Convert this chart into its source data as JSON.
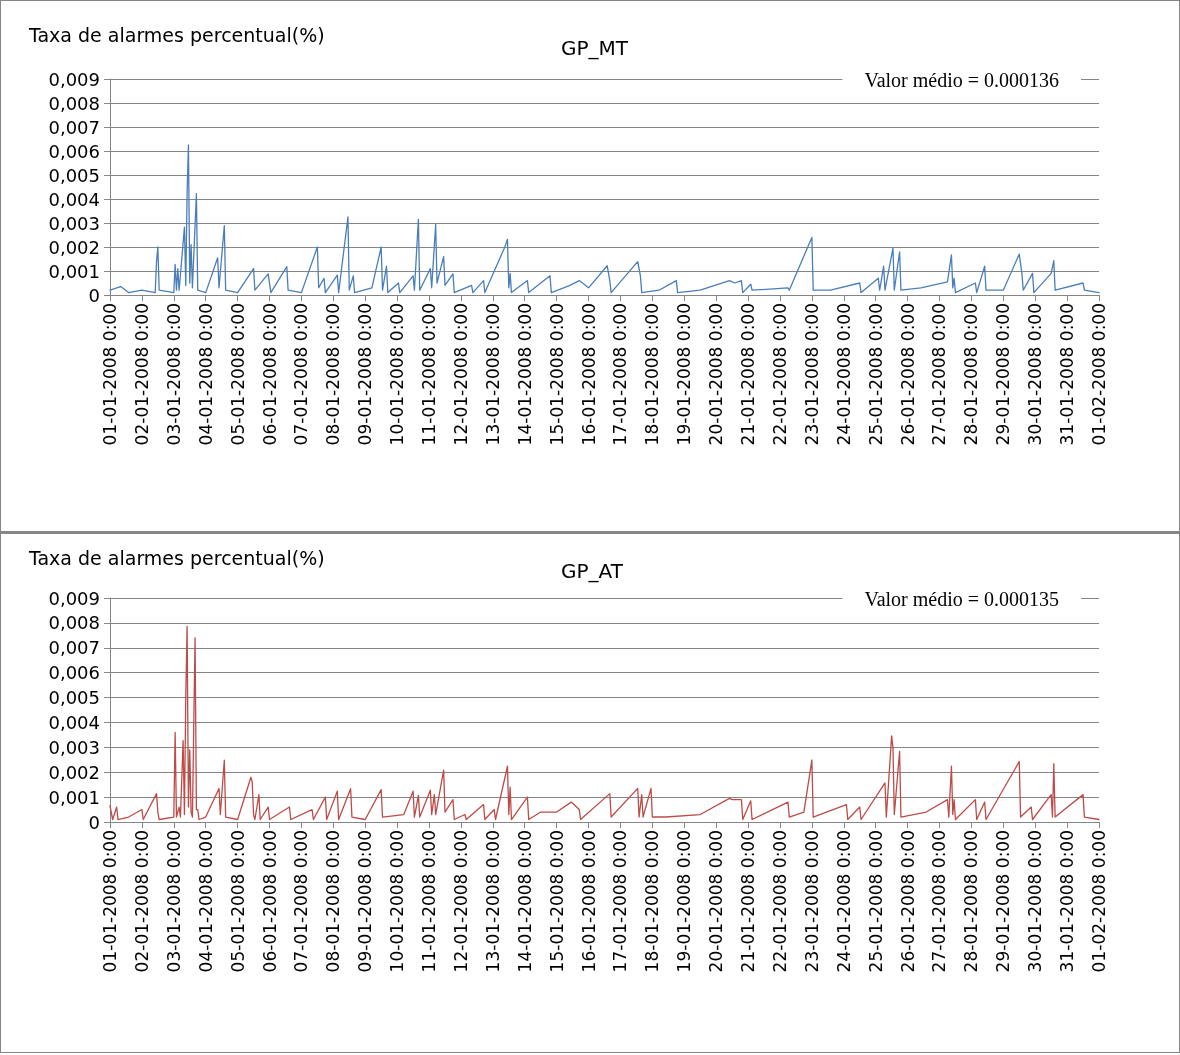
{
  "chart_data": [
    {
      "type": "line",
      "title": "GP_MT",
      "ylabel": "Taxa de alarmes percentual(%)",
      "annotations": [
        "Valor médio = 0.000136"
      ],
      "grid": "y",
      "line_style": "solid",
      "ylim": [
        0,
        0.009
      ],
      "yticks": [
        0,
        {
          "value": 0.001,
          "label": "0,001"
        },
        {
          "value": 0.002,
          "label": "0,002"
        },
        {
          "value": 0.003,
          "label": "0,003"
        },
        {
          "value": 0.004,
          "label": "0,004"
        },
        {
          "value": 0.005,
          "label": "0,005"
        },
        {
          "value": 0.006,
          "label": "0,006"
        },
        {
          "value": 0.007,
          "label": "0,007"
        },
        {
          "value": 0.008,
          "label": "0,008"
        },
        {
          "value": 0.009,
          "label": "0,009"
        }
      ],
      "xlim": [
        "2008-01-01T00:00",
        "2008-02-01T00:00"
      ],
      "xticks": [
        {
          "value": "2008-01-01T00:00",
          "label": "01-01-2008 0:00"
        },
        {
          "value": "2008-01-02T00:00",
          "label": "02-01-2008 0:00"
        },
        {
          "value": "2008-01-03T00:00",
          "label": "03-01-2008 0:00"
        },
        {
          "value": "2008-01-04T00:00",
          "label": "04-01-2008 0:00"
        },
        {
          "value": "2008-01-05T00:00",
          "label": "05-01-2008 0:00"
        },
        {
          "value": "2008-01-06T00:00",
          "label": "06-01-2008 0:00"
        },
        {
          "value": "2008-01-07T00:00",
          "label": "07-01-2008 0:00"
        },
        {
          "value": "2008-01-08T00:00",
          "label": "08-01-2008 0:00"
        },
        {
          "value": "2008-01-09T00:00",
          "label": "09-01-2008 0:00"
        },
        {
          "value": "2008-01-10T00:00",
          "label": "10-01-2008 0:00"
        },
        {
          "value": "2008-01-11T00:00",
          "label": "11-01-2008 0:00"
        },
        {
          "value": "2008-01-12T00:00",
          "label": "12-01-2008 0:00"
        },
        {
          "value": "2008-01-13T00:00",
          "label": "13-01-2008 0:00"
        },
        {
          "value": "2008-01-14T00:00",
          "label": "14-01-2008 0:00"
        },
        {
          "value": "2008-01-15T00:00",
          "label": "15-01-2008 0:00"
        },
        {
          "value": "2008-01-16T00:00",
          "label": "16-01-2008 0:00"
        },
        {
          "value": "2008-01-17T00:00",
          "label": "17-01-2008 0:00"
        },
        {
          "value": "2008-01-18T00:00",
          "label": "18-01-2008 0:00"
        },
        {
          "value": "2008-01-19T00:00",
          "label": "19-01-2008 0:00"
        },
        {
          "value": "2008-01-20T00:00",
          "label": "20-01-2008 0:00"
        },
        {
          "value": "2008-01-21T00:00",
          "label": "21-01-2008 0:00"
        },
        {
          "value": "2008-01-22T00:00",
          "label": "22-01-2008 0:00"
        },
        {
          "value": "2008-01-23T00:00",
          "label": "23-01-2008 0:00"
        },
        {
          "value": "2008-01-24T00:00",
          "label": "24-01-2008 0:00"
        },
        {
          "value": "2008-01-25T00:00",
          "label": "25-01-2008 0:00"
        },
        {
          "value": "2008-01-26T00:00",
          "label": "26-01-2008 0:00"
        },
        {
          "value": "2008-01-27T00:00",
          "label": "27-01-2008 0:00"
        },
        {
          "value": "2008-01-28T00:00",
          "label": "28-01-2008 0:00"
        },
        {
          "value": "2008-01-29T00:00",
          "label": "29-01-2008 0:00"
        },
        {
          "value": "2008-01-30T00:00",
          "label": "30-01-2008 0:00"
        },
        {
          "value": "2008-01-31T00:00",
          "label": "31-01-2008 0:00"
        },
        {
          "value": "2008-02-01T00:00",
          "label": "01-02-2008 0:00"
        }
      ],
      "x": [
        "2008-01-01T00:00",
        "2008-01-01T08:00",
        "2008-01-01T14:00",
        "2008-01-02T00:00",
        "2008-01-02T10:00",
        "2008-01-02T11:00",
        "2008-01-02T12:00",
        "2008-01-02T13:00",
        "2008-01-03T00:00",
        "2008-01-03T01:00",
        "2008-01-03T02:00",
        "2008-01-03T03:00",
        "2008-01-03T04:00",
        "2008-01-03T08:00",
        "2008-01-03T09:00",
        "2008-01-03T10:00",
        "2008-01-03T11:00",
        "2008-01-03T12:00",
        "2008-01-03T13:00",
        "2008-01-03T14:00",
        "2008-01-03T17:00",
        "2008-01-03T18:00",
        "2008-01-04T00:00",
        "2008-01-04T09:00",
        "2008-01-04T10:00",
        "2008-01-04T14:00",
        "2008-01-04T15:00",
        "2008-01-05T00:00",
        "2008-01-05T12:00",
        "2008-01-05T13:00",
        "2008-01-05T23:00",
        "2008-01-06T01:00",
        "2008-01-06T13:00",
        "2008-01-06T14:00",
        "2008-01-07T00:00",
        "2008-01-07T12:00",
        "2008-01-07T13:00",
        "2008-01-07T17:00",
        "2008-01-07T18:00",
        "2008-01-08T03:00",
        "2008-01-08T04:00",
        "2008-01-08T11:00",
        "2008-01-08T12:00",
        "2008-01-08T15:00",
        "2008-01-08T16:00",
        "2008-01-09T05:00",
        "2008-01-09T12:00",
        "2008-01-09T13:00",
        "2008-01-09T16:00",
        "2008-01-09T17:00",
        "2008-01-10T01:00",
        "2008-01-10T02:00",
        "2008-01-10T12:00",
        "2008-01-10T13:00",
        "2008-01-10T16:00",
        "2008-01-10T17:00",
        "2008-01-11T01:00",
        "2008-01-11T02:00",
        "2008-01-11T05:00",
        "2008-01-11T06:00",
        "2008-01-11T11:00",
        "2008-01-11T12:00",
        "2008-01-11T18:00",
        "2008-01-11T19:00",
        "2008-01-12T08:00",
        "2008-01-12T09:00",
        "2008-01-12T17:00",
        "2008-01-12T18:00",
        "2008-01-13T09:00",
        "2008-01-13T11:00",
        "2008-01-13T12:00",
        "2008-01-13T13:00",
        "2008-01-13T14:00",
        "2008-01-14T02:00",
        "2008-01-14T03:00",
        "2008-01-14T19:00",
        "2008-01-14T20:00",
        "2008-01-15T10:00",
        "2008-01-15T17:00",
        "2008-01-16T00:00",
        "2008-01-16T14:00",
        "2008-01-16T16:00",
        "2008-01-16T17:00",
        "2008-01-17T13:00",
        "2008-01-17T15:00",
        "2008-01-17T16:00",
        "2008-01-18T05:00",
        "2008-01-18T18:00",
        "2008-01-18T19:00",
        "2008-01-19T12:00",
        "2008-01-20T10:00",
        "2008-01-20T14:00",
        "2008-01-20T19:00",
        "2008-01-20T20:00",
        "2008-01-21T02:00",
        "2008-01-21T03:00",
        "2008-01-22T06:00",
        "2008-01-22T07:00",
        "2008-01-23T00:00",
        "2008-01-23T01:00",
        "2008-01-23T14:00",
        "2008-01-24T12:00",
        "2008-01-24T13:00",
        "2008-01-25T02:00",
        "2008-01-25T03:00",
        "2008-01-25T06:00",
        "2008-01-25T07:00",
        "2008-01-25T13:00",
        "2008-01-25T14:00",
        "2008-01-25T18:00",
        "2008-01-25T19:00",
        "2008-01-26T10:00",
        "2008-01-27T06:00",
        "2008-01-27T09:00",
        "2008-01-27T10:00",
        "2008-01-27T11:00",
        "2008-01-27T12:00",
        "2008-01-28T03:00",
        "2008-01-28T04:00",
        "2008-01-28T10:00",
        "2008-01-28T11:00",
        "2008-01-29T00:00",
        "2008-01-29T12:00",
        "2008-01-29T14:00",
        "2008-01-29T15:00",
        "2008-01-29T22:00",
        "2008-01-29T23:00",
        "2008-01-30T12:00",
        "2008-01-30T14:00",
        "2008-01-30T15:00",
        "2008-01-31T12:00",
        "2008-01-31T13:00",
        "2008-02-01T00:00"
      ],
      "series": [
        {
          "color": "#4a7ebb",
          "values": [
            0.0002,
            0.00035,
            0.0001,
            0.0002,
            0.0001,
            0.0014,
            0.002,
            0.0002,
            0.0001,
            0.00128,
            0.0002,
            0.0011,
            0.0002,
            0.00283,
            0.0004,
            0.00426,
            0.00625,
            0.0005,
            0.0021,
            0.0003,
            0.00422,
            0.0002,
            0.0001,
            0.00155,
            0.0003,
            0.00289,
            0.0002,
            0.0001,
            0.0011,
            0.0002,
            0.00088,
            0.0001,
            0.00118,
            0.0002,
            0.0001,
            0.002,
            0.0003,
            0.0007,
            0.0001,
            0.00083,
            0.0001,
            0.00325,
            0.0002,
            0.0008,
            0.0001,
            0.0003,
            0.002,
            0.0002,
            0.0012,
            0.0001,
            0.0005,
            0.0001,
            0.0008,
            0.0002,
            0.00315,
            0.0002,
            0.0011,
            0.0003,
            0.00294,
            0.0005,
            0.0016,
            0.0004,
            0.00088,
            0.0001,
            0.0004,
            0.0001,
            0.0006,
            0.0001,
            0.002,
            0.00232,
            0.0003,
            0.0009,
            0.0001,
            0.0006,
            0.0001,
            0.0008,
            0.0001,
            0.0004,
            0.0006,
            0.0003,
            0.00122,
            0.0006,
            0.0001,
            0.00139,
            0.0008,
            0.0001,
            0.0002,
            0.0006,
            0.0001,
            0.0002,
            0.0006,
            0.0005,
            0.0006,
            0.0001,
            0.00045,
            0.0002,
            0.0003,
            0.0002,
            0.0024,
            0.0002,
            0.0002,
            0.0005,
            0.0001,
            0.0007,
            0.0002,
            0.0012,
            0.0002,
            0.00195,
            0.0002,
            0.0018,
            0.0002,
            0.0003,
            0.00055,
            0.00167,
            0.0003,
            0.0007,
            0.0001,
            0.0005,
            0.0001,
            0.0012,
            0.0002,
            0.0002,
            0.0017,
            0.0009,
            0.0002,
            0.0009,
            0.0001,
            0.0009,
            0.00143,
            0.0002,
            0.0005,
            0.0002,
            0.0001
          ]
        }
      ]
    },
    {
      "type": "line",
      "title": "GP_AT",
      "ylabel": "Taxa de alarmes percentual(%)",
      "annotations": [
        "Valor médio = 0.000135"
      ],
      "grid": "y",
      "line_style": "solid",
      "ylim": [
        0,
        0.009
      ],
      "yticks": [
        0,
        {
          "value": 0.001,
          "label": "0,001"
        },
        {
          "value": 0.002,
          "label": "0,002"
        },
        {
          "value": 0.003,
          "label": "0,003"
        },
        {
          "value": 0.004,
          "label": "0,004"
        },
        {
          "value": 0.005,
          "label": "0,005"
        },
        {
          "value": 0.006,
          "label": "0,006"
        },
        {
          "value": 0.007,
          "label": "0,007"
        },
        {
          "value": 0.008,
          "label": "0,008"
        },
        {
          "value": 0.009,
          "label": "0,009"
        }
      ],
      "xlim": [
        "2008-01-01T00:00",
        "2008-02-01T00:00"
      ],
      "xticks": [
        {
          "value": "2008-01-01T00:00",
          "label": "01-01-2008 0:00"
        },
        {
          "value": "2008-01-02T00:00",
          "label": "02-01-2008 0:00"
        },
        {
          "value": "2008-01-03T00:00",
          "label": "03-01-2008 0:00"
        },
        {
          "value": "2008-01-04T00:00",
          "label": "04-01-2008 0:00"
        },
        {
          "value": "2008-01-05T00:00",
          "label": "05-01-2008 0:00"
        },
        {
          "value": "2008-01-06T00:00",
          "label": "06-01-2008 0:00"
        },
        {
          "value": "2008-01-07T00:00",
          "label": "07-01-2008 0:00"
        },
        {
          "value": "2008-01-08T00:00",
          "label": "08-01-2008 0:00"
        },
        {
          "value": "2008-01-09T00:00",
          "label": "09-01-2008 0:00"
        },
        {
          "value": "2008-01-10T00:00",
          "label": "10-01-2008 0:00"
        },
        {
          "value": "2008-01-11T00:00",
          "label": "11-01-2008 0:00"
        },
        {
          "value": "2008-01-12T00:00",
          "label": "12-01-2008 0:00"
        },
        {
          "value": "2008-01-13T00:00",
          "label": "13-01-2008 0:00"
        },
        {
          "value": "2008-01-14T00:00",
          "label": "14-01-2008 0:00"
        },
        {
          "value": "2008-01-15T00:00",
          "label": "15-01-2008 0:00"
        },
        {
          "value": "2008-01-16T00:00",
          "label": "16-01-2008 0:00"
        },
        {
          "value": "2008-01-17T00:00",
          "label": "17-01-2008 0:00"
        },
        {
          "value": "2008-01-18T00:00",
          "label": "18-01-2008 0:00"
        },
        {
          "value": "2008-01-19T00:00",
          "label": "19-01-2008 0:00"
        },
        {
          "value": "2008-01-20T00:00",
          "label": "20-01-2008 0:00"
        },
        {
          "value": "2008-01-21T00:00",
          "label": "21-01-2008 0:00"
        },
        {
          "value": "2008-01-22T00:00",
          "label": "22-01-2008 0:00"
        },
        {
          "value": "2008-01-23T00:00",
          "label": "23-01-2008 0:00"
        },
        {
          "value": "2008-01-24T00:00",
          "label": "24-01-2008 0:00"
        },
        {
          "value": "2008-01-25T00:00",
          "label": "25-01-2008 0:00"
        },
        {
          "value": "2008-01-26T00:00",
          "label": "26-01-2008 0:00"
        },
        {
          "value": "2008-01-27T00:00",
          "label": "27-01-2008 0:00"
        },
        {
          "value": "2008-01-28T00:00",
          "label": "28-01-2008 0:00"
        },
        {
          "value": "2008-01-29T00:00",
          "label": "29-01-2008 0:00"
        },
        {
          "value": "2008-01-30T00:00",
          "label": "30-01-2008 0:00"
        },
        {
          "value": "2008-01-31T00:00",
          "label": "31-01-2008 0:00"
        },
        {
          "value": "2008-02-01T00:00",
          "label": "01-02-2008 0:00"
        }
      ],
      "x": [
        "2008-01-01T00:00",
        "2008-01-01T02:00",
        "2008-01-01T05:00",
        "2008-01-01T06:00",
        "2008-01-01T14:00",
        "2008-01-02T00:00",
        "2008-01-02T01:00",
        "2008-01-02T11:00",
        "2008-01-02T12:00",
        "2008-01-02T13:00",
        "2008-01-03T00:00",
        "2008-01-03T01:00",
        "2008-01-03T02:00",
        "2008-01-03T04:00",
        "2008-01-03T05:00",
        "2008-01-03T07:00",
        "2008-01-03T08:00",
        "2008-01-03T09:00",
        "2008-01-03T10:00",
        "2008-01-03T11:00",
        "2008-01-03T12:00",
        "2008-01-03T13:00",
        "2008-01-03T14:00",
        "2008-01-03T16:00",
        "2008-01-03T17:00",
        "2008-01-03T18:00",
        "2008-01-03T19:00",
        "2008-01-04T00:00",
        "2008-01-04T10:00",
        "2008-01-04T11:00",
        "2008-01-04T14:00",
        "2008-01-04T15:00",
        "2008-01-05T00:00",
        "2008-01-05T10:00",
        "2008-01-05T11:00",
        "2008-01-05T12:00",
        "2008-01-05T13:00",
        "2008-01-05T16:00",
        "2008-01-05T17:00",
        "2008-01-05T23:00",
        "2008-01-06T00:00",
        "2008-01-06T15:00",
        "2008-01-06T16:00",
        "2008-01-07T08:00",
        "2008-01-07T09:00",
        "2008-01-07T18:00",
        "2008-01-07T19:00",
        "2008-01-08T03:00",
        "2008-01-08T04:00",
        "2008-01-08T13:00",
        "2008-01-08T14:00",
        "2008-01-09T00:00",
        "2008-01-09T12:00",
        "2008-01-09T13:00",
        "2008-01-10T05:00",
        "2008-01-10T12:00",
        "2008-01-10T13:00",
        "2008-01-10T16:00",
        "2008-01-10T17:00",
        "2008-01-11T01:00",
        "2008-01-11T02:00",
        "2008-01-11T04:00",
        "2008-01-11T05:00",
        "2008-01-11T11:00",
        "2008-01-11T12:00",
        "2008-01-11T18:00",
        "2008-01-11T19:00",
        "2008-01-12T03:00",
        "2008-01-12T04:00",
        "2008-01-12T17:00",
        "2008-01-12T18:00",
        "2008-01-13T01:00",
        "2008-01-13T02:00",
        "2008-01-13T11:00",
        "2008-01-13T12:00",
        "2008-01-13T13:00",
        "2008-01-13T14:00",
        "2008-01-14T02:00",
        "2008-01-14T03:00",
        "2008-01-14T12:00",
        "2008-01-15T00:00",
        "2008-01-15T11:00",
        "2008-01-15T17:00",
        "2008-01-15T18:00",
        "2008-01-16T16:00",
        "2008-01-16T17:00",
        "2008-01-17T13:00",
        "2008-01-17T14:00",
        "2008-01-17T16:00",
        "2008-01-17T17:00",
        "2008-01-17T23:00",
        "2008-01-18T00:00",
        "2008-01-18T10:00",
        "2008-01-19T12:00",
        "2008-01-20T10:00",
        "2008-01-20T12:00",
        "2008-01-20T19:00",
        "2008-01-20T20:00",
        "2008-01-21T02:00",
        "2008-01-21T03:00",
        "2008-01-22T06:00",
        "2008-01-22T07:00",
        "2008-01-22T18:00",
        "2008-01-23T00:00",
        "2008-01-23T01:00",
        "2008-01-24T02:00",
        "2008-01-24T03:00",
        "2008-01-24T12:00",
        "2008-01-24T13:00",
        "2008-01-25T07:00",
        "2008-01-25T08:00",
        "2008-01-25T12:00",
        "2008-01-25T13:00",
        "2008-01-25T14:00",
        "2008-01-25T18:00",
        "2008-01-25T19:00",
        "2008-01-26T14:00",
        "2008-01-27T06:00",
        "2008-01-27T07:00",
        "2008-01-27T09:00",
        "2008-01-27T10:00",
        "2008-01-27T11:00",
        "2008-01-27T12:00",
        "2008-01-28T03:00",
        "2008-01-28T04:00",
        "2008-01-28T10:00",
        "2008-01-28T11:00",
        "2008-01-29T12:00",
        "2008-01-29T13:00",
        "2008-01-29T21:00",
        "2008-01-29T22:00",
        "2008-01-30T12:00",
        "2008-01-30T13:00",
        "2008-01-30T14:00",
        "2008-01-30T15:00",
        "2008-01-31T12:00",
        "2008-01-31T13:00",
        "2008-02-01T00:00"
      ],
      "series": [
        {
          "color": "#be4b48",
          "values": [
            0.00066,
            0.0001,
            0.0006,
            0.0001,
            0.0002,
            0.0005,
            0.0001,
            0.00114,
            0.0004,
            0.0001,
            0.0002,
            0.0036,
            0.0002,
            0.0006,
            0.0002,
            0.00327,
            0.0003,
            0.005,
            0.00786,
            0.0006,
            0.0029,
            0.0004,
            0.0002,
            0.0074,
            0.0005,
            0.0005,
            0.0001,
            0.0002,
            0.00135,
            0.0003,
            0.00249,
            0.0002,
            0.0001,
            0.0018,
            0.0016,
            0.0003,
            0.0001,
            0.0011,
            0.0001,
            0.0006,
            0.0001,
            0.0006,
            0.0001,
            0.0005,
            0.0001,
            0.001,
            0.0001,
            0.00124,
            0.0001,
            0.00134,
            0.0002,
            0.0001,
            0.0013,
            0.0002,
            0.0003,
            0.00124,
            0.0002,
            0.00107,
            0.0002,
            0.00128,
            0.0003,
            0.0011,
            0.0003,
            0.00208,
            0.0004,
            0.0009,
            0.0001,
            0.0003,
            0.0001,
            0.0007,
            0.0001,
            0.0005,
            0.0001,
            0.00224,
            0.0003,
            0.0014,
            0.0001,
            0.001,
            0.0001,
            0.0004,
            0.0004,
            0.0008,
            0.0005,
            0.0001,
            0.00114,
            0.0002,
            0.00135,
            0.0002,
            0.0011,
            0.0002,
            0.00135,
            0.0002,
            0.0002,
            0.0003,
            0.00095,
            0.0009,
            0.0009,
            0.0001,
            0.00085,
            0.0001,
            0.0008,
            0.0002,
            0.0004,
            0.00249,
            0.0002,
            0.0007,
            0.0001,
            0.0006,
            0.0001,
            0.00157,
            0.0002,
            0.00346,
            0.003,
            0.0003,
            0.00284,
            0.0002,
            0.0004,
            0.0009,
            0.0002,
            0.00224,
            0.0003,
            0.0009,
            0.0001,
            0.0009,
            0.0001,
            0.0008,
            0.0001,
            0.00243,
            0.0002,
            0.0006,
            0.0001,
            0.0011,
            0.0002,
            0.00234,
            0.0002,
            0.0011,
            0.0002,
            0.0001
          ]
        }
      ]
    }
  ]
}
